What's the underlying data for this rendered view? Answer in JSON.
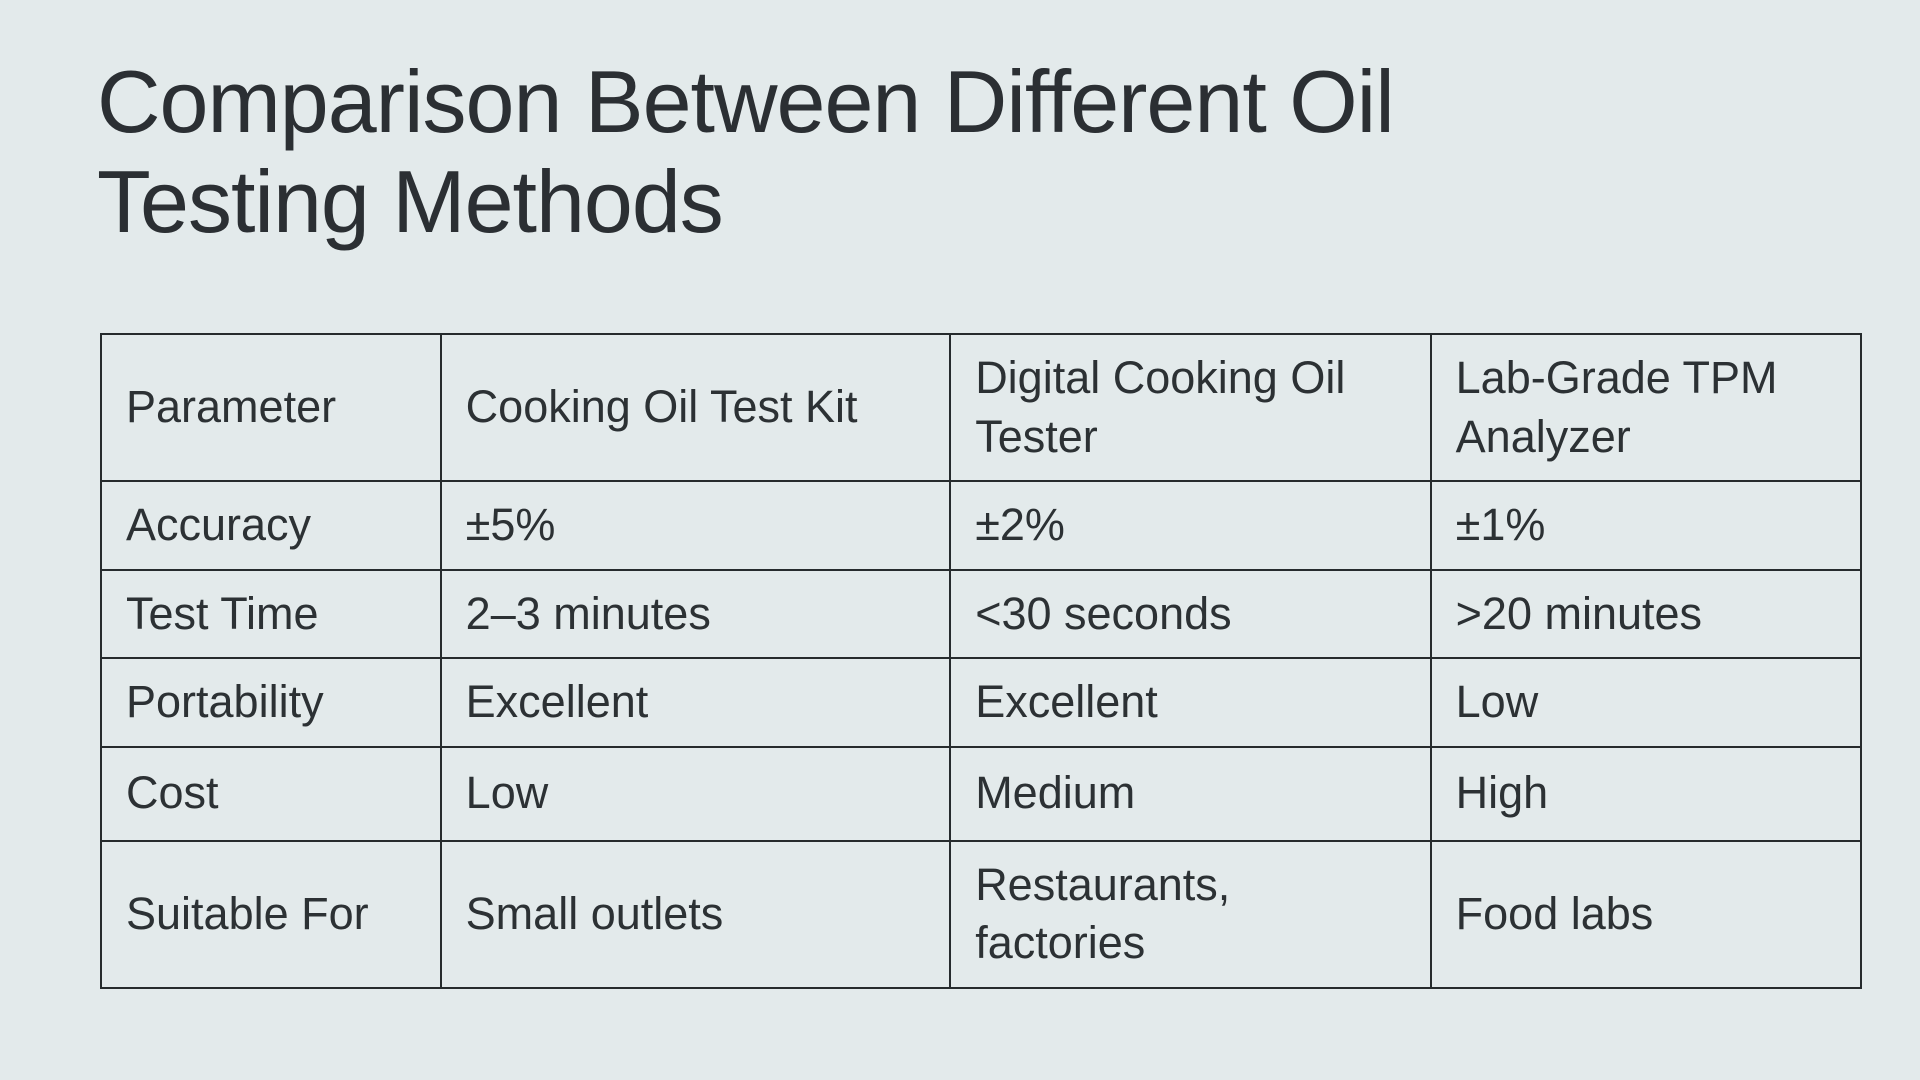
{
  "page": {
    "background_color": "#e3eaeb",
    "text_color": "#2c3134",
    "border_color": "#262b2d",
    "title_line1": "Comparison Between Different Oil",
    "title_line2": "Testing Methods"
  },
  "chart_data": {
    "type": "table",
    "title": "Comparison Between Different Oil Testing Methods",
    "columns": [
      "Parameter",
      "Cooking Oil Test Kit",
      "Digital Cooking Oil Tester",
      "Lab-Grade TPM Analyzer"
    ],
    "rows": [
      [
        "Accuracy",
        "±5%",
        "±2%",
        "±1%"
      ],
      [
        "Test Time",
        "2–3 minutes",
        "<30 seconds",
        ">20 minutes"
      ],
      [
        "Portability",
        "Excellent",
        "Excellent",
        "Low"
      ],
      [
        "Cost",
        "Low",
        "Medium",
        "High"
      ],
      [
        "Suitable For",
        "Small outlets",
        "Restaurants, factories",
        "Food labs"
      ]
    ]
  }
}
